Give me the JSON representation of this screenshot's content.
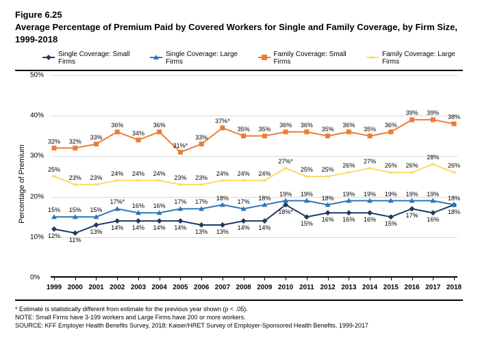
{
  "figure_number": "Figure 6.25",
  "title": "Average Percentage of Premium Paid by Covered Workers for Single and Family Coverage, by Firm Size, 1999-2018",
  "y_axis_label": "Percentage of Premium",
  "ylim": [
    0,
    50
  ],
  "ytick_step": 10,
  "ytick_labels": [
    "0%",
    "10%",
    "20%",
    "30%",
    "40%",
    "50%"
  ],
  "categories": [
    "1999",
    "2000",
    "2001",
    "2002",
    "2003",
    "2004",
    "2005",
    "2006",
    "2007",
    "2008",
    "2009",
    "2010",
    "2011",
    "2012",
    "2013",
    "2014",
    "2015",
    "2016",
    "2017",
    "2018"
  ],
  "grid_color": "#d9d9d9",
  "background_color": "#ffffff",
  "series": [
    {
      "name": "Single Coverage: Small Firms",
      "color": "#1f3864",
      "marker": "diamond",
      "values": [
        12,
        11,
        13,
        14,
        14,
        14,
        14,
        13,
        13,
        14,
        14,
        18,
        15,
        16,
        16,
        16,
        15,
        17,
        16,
        18
      ],
      "labels": [
        "12%",
        "11%",
        "13%",
        "14%",
        "14%",
        "14%",
        "14%",
        "13%",
        "13%",
        "14%",
        "14%",
        "18%*",
        "15%",
        "16%",
        "16%",
        "16%",
        "15%",
        "17%",
        "16%",
        "18%"
      ],
      "label_pos": "below"
    },
    {
      "name": "Single Coverage: Large Firms",
      "color": "#2e75b6",
      "marker": "triangle",
      "values": [
        15,
        15,
        15,
        17,
        16,
        16,
        17,
        17,
        18,
        17,
        18,
        19,
        19,
        18,
        19,
        19,
        19,
        19,
        19,
        18
      ],
      "labels": [
        "15%",
        "15%",
        "15%",
        "17%*",
        "16%",
        "16%",
        "17%",
        "17%",
        "18%",
        "17%",
        "18%",
        "19%",
        "19%",
        "18%",
        "19%",
        "19%",
        "19%",
        "19%",
        "19%",
        "18%"
      ],
      "label_pos": "above"
    },
    {
      "name": "Family Coverage: Small Firms",
      "color": "#ed7d31",
      "marker": "square",
      "values": [
        32,
        32,
        33,
        36,
        34,
        36,
        31,
        33,
        37,
        35,
        35,
        36,
        36,
        35,
        36,
        35,
        36,
        39,
        39,
        38
      ],
      "labels": [
        "32%",
        "32%",
        "33%",
        "36%",
        "34%",
        "36%",
        "31%*",
        "33%",
        "37%*",
        "35%",
        "35%",
        "36%",
        "36%",
        "35%",
        "36%",
        "35%",
        "36%",
        "39%",
        "39%",
        "38%"
      ],
      "label_pos": "above"
    },
    {
      "name": "Family Coverage: Large Firms",
      "color": "#ffd966",
      "marker": "line",
      "values": [
        25,
        23,
        23,
        24,
        24,
        24,
        23,
        23,
        24,
        24,
        24,
        27,
        25,
        25,
        26,
        27,
        26,
        26,
        28,
        26
      ],
      "labels": [
        "25%",
        "23%",
        "23%",
        "24%",
        "24%",
        "24%",
        "23%",
        "23%",
        "24%",
        "24%",
        "24%",
        "27%*",
        "25%",
        "25%",
        "26%",
        "27%",
        "26%",
        "26%",
        "28%",
        "26%"
      ],
      "label_pos": "above"
    }
  ],
  "footnote1": "* Estimate is statistically different from estimate for the previous year shown (p < .05).",
  "footnote2": "NOTE: Small Firms have 3-199 workers and Large Firms have 200 or more workers.",
  "footnote3": "SOURCE: KFF Employer Health Benefits Survey, 2018; Kaiser/HRET Survey of Employer-Sponsored Health Benefits, 1999-2017"
}
